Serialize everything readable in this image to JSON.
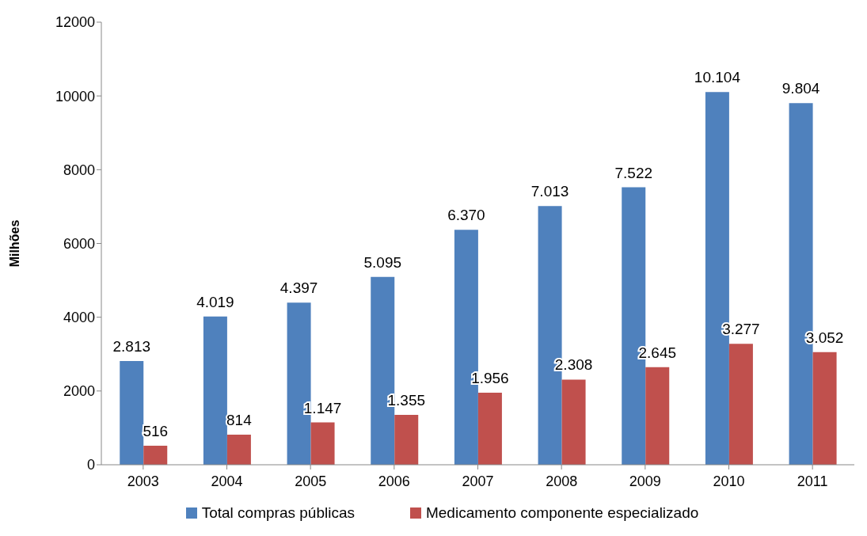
{
  "chart_data": {
    "type": "bar",
    "ylabel": "Milhões",
    "categories": [
      "2003",
      "2004",
      "2005",
      "2006",
      "2007",
      "2008",
      "2009",
      "2010",
      "2011"
    ],
    "series": [
      {
        "name": "Total compras públicas",
        "color": "#4f81bd",
        "values": [
          2813,
          4019,
          4397,
          5095,
          6370,
          7013,
          7522,
          10104,
          9804
        ],
        "value_labels": [
          "2.813",
          "4.019",
          "4.397",
          "5.095",
          "6.370",
          "7.013",
          "7.522",
          "10.104",
          "9.804"
        ]
      },
      {
        "name": "Medicamento componente especializado",
        "color": "#c0504d",
        "values": [
          516,
          814,
          1147,
          1355,
          1956,
          2308,
          2645,
          3277,
          3052
        ],
        "value_labels": [
          "516",
          "814",
          "1.147",
          "1.355",
          "1.956",
          "2.308",
          "2.645",
          "3.277",
          "3.052"
        ]
      }
    ],
    "ylim": [
      0,
      12000
    ],
    "yticks": [
      0,
      2000,
      4000,
      6000,
      8000,
      10000,
      12000
    ],
    "legend": "bottom"
  }
}
